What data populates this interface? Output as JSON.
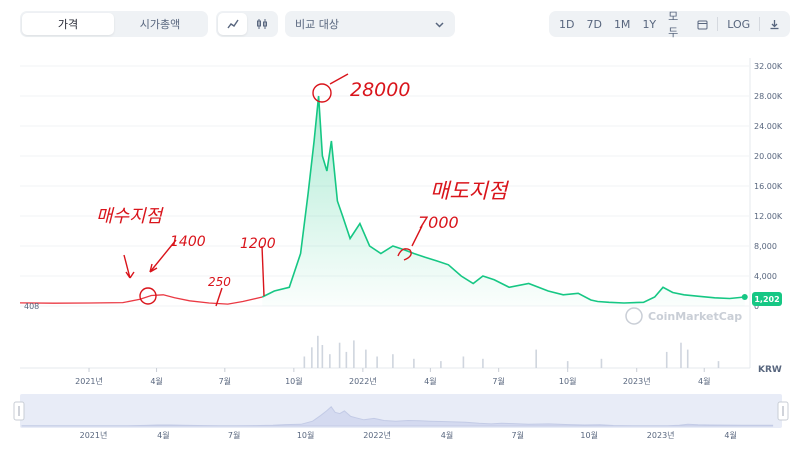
{
  "toolbar": {
    "tabs": [
      "가격",
      "시가총액"
    ],
    "active_tab": 0,
    "compare_label": "비교 대상",
    "ranges": [
      "1D",
      "7D",
      "1M",
      "1Y",
      "모두"
    ],
    "log_label": "LOG"
  },
  "price_badge": "1,202",
  "start_label": "408",
  "currency_label": "KRW",
  "watermark": "CoinMarketCap",
  "colors": {
    "line": "#16c784",
    "pre_line": "#ea3943",
    "handwriting": "#d9141b",
    "axis": "#58667e"
  },
  "annotations": {
    "buy_point": "매수지점",
    "sell_point": "매도지점",
    "p1400": "1400",
    "p250": "250",
    "p1200": "1200",
    "p28000": "28000",
    "p7000": "7000"
  },
  "chart_data": {
    "type": "line",
    "series": [
      {
        "x": [
          "2020-10-01",
          "2020-11-15",
          "2021-01-01",
          "2021-02-15",
          "2021-03-10",
          "2021-03-25",
          "2021-04-10",
          "2021-04-25",
          "2021-05-15",
          "2021-06-10",
          "2021-07-05",
          "2021-07-25",
          "2021-08-20",
          "2021-09-05",
          "2021-09-25",
          "2021-10-10",
          "2021-10-20",
          "2021-10-28",
          "2021-11-03",
          "2021-11-08",
          "2021-11-14",
          "2021-11-20",
          "2021-11-28",
          "2021-12-05",
          "2021-12-15",
          "2021-12-28",
          "2022-01-10",
          "2022-01-25",
          "2022-02-10",
          "2022-02-25",
          "2022-03-10",
          "2022-03-25",
          "2022-04-10",
          "2022-04-25",
          "2022-05-12",
          "2022-05-28",
          "2022-06-10",
          "2022-06-25",
          "2022-07-15",
          "2022-08-10",
          "2022-09-05",
          "2022-09-25",
          "2022-10-15",
          "2022-11-01",
          "2022-11-10",
          "2022-11-25",
          "2022-12-15",
          "2023-01-10",
          "2023-01-25",
          "2023-02-05",
          "2023-02-18",
          "2023-03-05",
          "2023-03-25",
          "2023-04-15",
          "2023-05-05",
          "2023-05-25"
        ],
        "y": [
          408,
          380,
          400,
          450,
          900,
          1400,
          1500,
          1100,
          700,
          400,
          250,
          600,
          1200,
          2000,
          2500,
          7000,
          15000,
          22000,
          28000,
          20000,
          18000,
          22000,
          14000,
          12000,
          9000,
          11000,
          8000,
          7000,
          8000,
          7500,
          7000,
          6500,
          6000,
          5500,
          4000,
          3000,
          4000,
          3500,
          2500,
          3000,
          2000,
          1500,
          1700,
          800,
          600,
          500,
          400,
          500,
          1200,
          2500,
          1800,
          1500,
          1300,
          1100,
          1000,
          1202
        ]
      }
    ],
    "pre_listing_until": "2021-08-20",
    "y_ticks": [
      "32.00K",
      "28.00K",
      "24.00K",
      "20.00K",
      "16.00K",
      "12.00K",
      "8,000",
      "4,000",
      "0"
    ],
    "ylim": [
      0,
      32000
    ],
    "x_ticks": [
      "2021년",
      "4월",
      "7월",
      "10월",
      "2022년",
      "4월",
      "7월",
      "10월",
      "2023년",
      "4월"
    ],
    "nav_x_ticks": [
      "2021년",
      "4월",
      "7월",
      "10월",
      "2022년",
      "4월",
      "7월",
      "10월",
      "2023년",
      "4월"
    ],
    "volume": [
      {
        "x": "2021-10-15",
        "v": 0.25
      },
      {
        "x": "2021-10-25",
        "v": 0.45
      },
      {
        "x": "2021-11-02",
        "v": 0.7
      },
      {
        "x": "2021-11-08",
        "v": 0.5
      },
      {
        "x": "2021-11-18",
        "v": 0.3
      },
      {
        "x": "2021-12-01",
        "v": 0.55
      },
      {
        "x": "2021-12-10",
        "v": 0.35
      },
      {
        "x": "2021-12-20",
        "v": 0.6
      },
      {
        "x": "2022-01-05",
        "v": 0.4
      },
      {
        "x": "2022-01-20",
        "v": 0.25
      },
      {
        "x": "2022-02-10",
        "v": 0.3
      },
      {
        "x": "2022-03-10",
        "v": 0.2
      },
      {
        "x": "2022-04-15",
        "v": 0.15
      },
      {
        "x": "2022-05-15",
        "v": 0.25
      },
      {
        "x": "2022-06-10",
        "v": 0.2
      },
      {
        "x": "2022-08-20",
        "v": 0.4
      },
      {
        "x": "2022-10-01",
        "v": 0.15
      },
      {
        "x": "2022-11-15",
        "v": 0.2
      },
      {
        "x": "2023-02-10",
        "v": 0.35
      },
      {
        "x": "2023-03-01",
        "v": 0.55
      },
      {
        "x": "2023-03-10",
        "v": 0.4
      },
      {
        "x": "2023-04-20",
        "v": 0.15
      }
    ]
  }
}
